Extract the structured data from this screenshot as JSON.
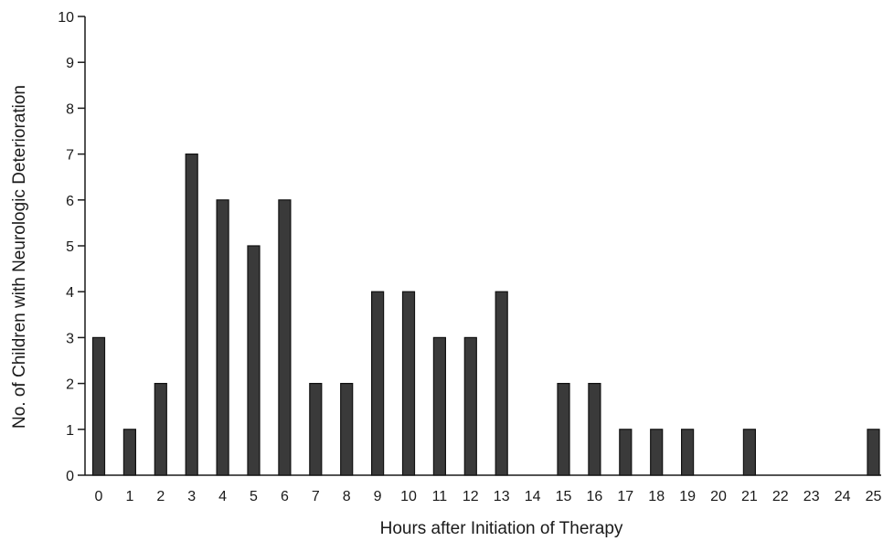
{
  "chart_data": {
    "type": "bar",
    "title": "",
    "xlabel": "Hours after Initiation of Therapy",
    "ylabel": "No. of Children with Neurologic Deterioration",
    "categories": [
      "0",
      "1",
      "2",
      "3",
      "4",
      "5",
      "6",
      "7",
      "8",
      "9",
      "10",
      "11",
      "12",
      "13",
      "14",
      "15",
      "16",
      "17",
      "18",
      "19",
      "20",
      "21",
      "22",
      "23",
      "24",
      "25"
    ],
    "values": [
      3,
      1,
      2,
      7,
      6,
      5,
      6,
      2,
      2,
      4,
      4,
      3,
      3,
      4,
      0,
      2,
      2,
      1,
      1,
      1,
      0,
      1,
      0,
      0,
      0,
      1
    ],
    "y_ticks": [
      "0",
      "1",
      "2",
      "3",
      "4",
      "5",
      "6",
      "7",
      "8",
      "9",
      "10"
    ],
    "ylim": [
      0,
      10
    ],
    "grid": false,
    "legend": "none",
    "colors": {
      "bar_fill": "#3a3a3a",
      "bar_stroke": "#111111",
      "axis": "#1a1a1a"
    }
  }
}
